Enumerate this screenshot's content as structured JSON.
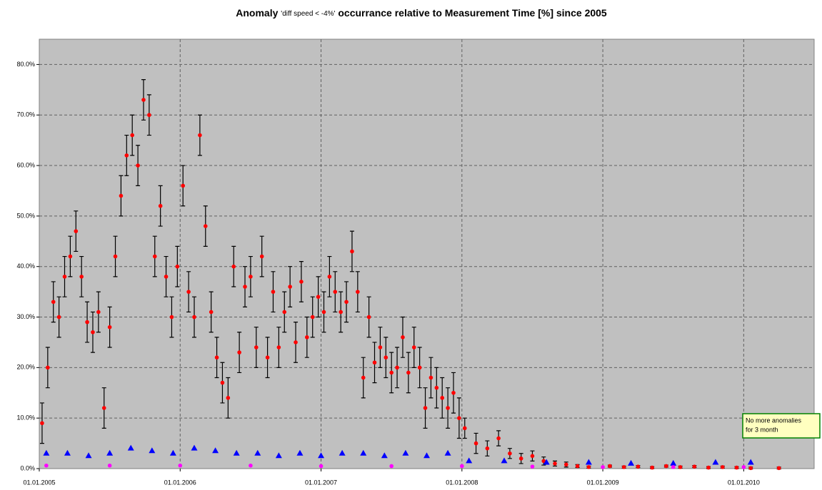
{
  "chart_data": {
    "type": "scatter",
    "title": {
      "prefix": "Anomaly",
      "condition": "'diff speed < -4%'",
      "suffix": "occurrance relative to Measurement Time [%] since 2005"
    },
    "xlim": [
      2005,
      2010.5
    ],
    "xticks": [
      {
        "value": 2005,
        "label": "01.01.2005"
      },
      {
        "value": 2006,
        "label": "01.01.2006"
      },
      {
        "value": 2007,
        "label": "01.01.2007"
      },
      {
        "value": 2008,
        "label": "01.01.2008"
      },
      {
        "value": 2009,
        "label": "01.01.2009"
      },
      {
        "value": 2010,
        "label": "01.01.2010"
      }
    ],
    "ylim": [
      0,
      85
    ],
    "yticks": [
      {
        "value": 0,
        "label": "0.0%"
      },
      {
        "value": 10,
        "label": "10.0%"
      },
      {
        "value": 20,
        "label": "20.0%"
      },
      {
        "value": 30,
        "label": "30.0%"
      },
      {
        "value": 40,
        "label": "40.0%"
      },
      {
        "value": 50,
        "label": "50.0%"
      },
      {
        "value": 60,
        "label": "60.0%"
      },
      {
        "value": 70,
        "label": "70.0%"
      },
      {
        "value": 80,
        "label": "80.0%"
      }
    ],
    "grid": true,
    "background": "#c0c0c0",
    "error_color": "#000000",
    "series": [
      {
        "color": "#ff0000",
        "marker": "circle",
        "x": [
          2005.02,
          2005.06,
          2005.1,
          2005.14,
          2005.18,
          2005.22,
          2005.26,
          2005.3,
          2005.34,
          2005.38,
          2005.42,
          2005.46,
          2005.5,
          2005.54,
          2005.58,
          2005.62,
          2005.66,
          2005.7,
          2005.74,
          2005.78,
          2005.82,
          2005.86,
          2005.9,
          2005.94,
          2005.98,
          2006.02,
          2006.06,
          2006.1,
          2006.14,
          2006.18,
          2006.22,
          2006.26,
          2006.3,
          2006.34,
          2006.38,
          2006.42,
          2006.46,
          2006.5,
          2006.54,
          2006.58,
          2006.62,
          2006.66,
          2006.7,
          2006.74,
          2006.78,
          2006.82,
          2006.86,
          2006.9,
          2006.94,
          2006.98,
          2007.02,
          2007.06,
          2007.1,
          2007.14,
          2007.18,
          2007.22,
          2007.26,
          2007.3,
          2007.34,
          2007.38,
          2007.42,
          2007.46,
          2007.5,
          2007.54,
          2007.58,
          2007.62,
          2007.66,
          2007.7,
          2007.74,
          2007.78,
          2007.82,
          2007.86,
          2007.9,
          2007.94,
          2007.98,
          2008.02,
          2008.1,
          2008.18,
          2008.26,
          2008.34,
          2008.42,
          2008.5,
          2008.58,
          2008.66,
          2008.74,
          2008.82,
          2008.9,
          2009.05,
          2009.15,
          2009.25,
          2009.35,
          2009.45,
          2009.55,
          2009.65,
          2009.75,
          2009.85,
          2009.95,
          2010.05,
          2010.25
        ],
        "values": [
          9,
          20,
          33,
          30,
          38,
          42,
          47,
          38,
          29,
          27,
          31,
          12,
          28,
          42,
          54,
          62,
          66,
          60,
          73,
          70,
          42,
          52,
          38,
          30,
          40,
          56,
          35,
          30,
          66,
          48,
          31,
          22,
          17,
          14,
          40,
          23,
          36,
          38,
          24,
          42,
          22,
          35,
          24,
          31,
          36,
          25,
          37,
          26,
          30,
          34,
          31,
          38,
          35,
          31,
          33,
          43,
          35,
          18,
          30,
          21,
          24,
          22,
          19,
          20,
          26,
          19,
          24,
          20,
          12,
          18,
          16,
          14,
          12,
          15,
          10,
          8,
          5,
          4,
          6,
          3,
          2,
          2.5,
          1.5,
          1,
          0.8,
          0.5,
          0.3,
          0.5,
          0.3,
          0.4,
          0.2,
          0.5,
          0.3,
          0.4,
          0.2,
          0.3,
          0.2,
          0.1,
          0.1
        ],
        "errors": [
          4,
          4,
          4,
          4,
          4,
          4,
          4,
          4,
          4,
          4,
          4,
          4,
          4,
          4,
          4,
          4,
          4,
          4,
          4,
          4,
          4,
          4,
          4,
          4,
          4,
          4,
          4,
          4,
          4,
          4,
          4,
          4,
          4,
          4,
          4,
          4,
          4,
          4,
          4,
          4,
          4,
          4,
          4,
          4,
          4,
          4,
          4,
          4,
          4,
          4,
          4,
          4,
          4,
          4,
          4,
          4,
          4,
          4,
          4,
          4,
          4,
          4,
          4,
          4,
          4,
          4,
          4,
          4,
          4,
          4,
          4,
          4,
          4,
          4,
          4,
          2,
          2,
          1.5,
          1.5,
          1,
          1,
          1,
          0.8,
          0.5,
          0.5,
          0.3,
          0.2,
          0.2,
          0.2,
          0.2,
          0.2,
          0.2,
          0.2,
          0.2,
          0.2,
          0.2,
          0.2,
          0.2,
          0.2
        ]
      },
      {
        "color": "#0000ff",
        "marker": "triangle",
        "x": [
          2005.05,
          2005.2,
          2005.35,
          2005.5,
          2005.65,
          2005.8,
          2005.95,
          2006.1,
          2006.25,
          2006.4,
          2006.55,
          2006.7,
          2006.85,
          2007,
          2007.15,
          2007.3,
          2007.45,
          2007.6,
          2007.75,
          2007.9,
          2008.05,
          2008.3,
          2008.6,
          2008.9,
          2009.2,
          2009.5,
          2009.8,
          2010.05
        ],
        "values": [
          3,
          3,
          2.5,
          3,
          4,
          3.5,
          3,
          4,
          3.5,
          3,
          3,
          2.5,
          3,
          2.5,
          3,
          3,
          2.5,
          3,
          2.5,
          3,
          1.5,
          1.5,
          1.2,
          1.2,
          1,
          1,
          1.2,
          1.2
        ]
      },
      {
        "color": "#ff00ff",
        "marker": "circle",
        "x": [
          2005.05,
          2005.5,
          2006,
          2006.5,
          2007,
          2007.5,
          2008,
          2008.5,
          2009,
          2009.5,
          2010
        ],
        "values": [
          0.6,
          0.6,
          0.6,
          0.6,
          0.5,
          0.5,
          0.5,
          0.4,
          0.3,
          0.3,
          0.3
        ]
      }
    ],
    "annotation": [
      "No more anomalies",
      "for 3 month"
    ]
  }
}
